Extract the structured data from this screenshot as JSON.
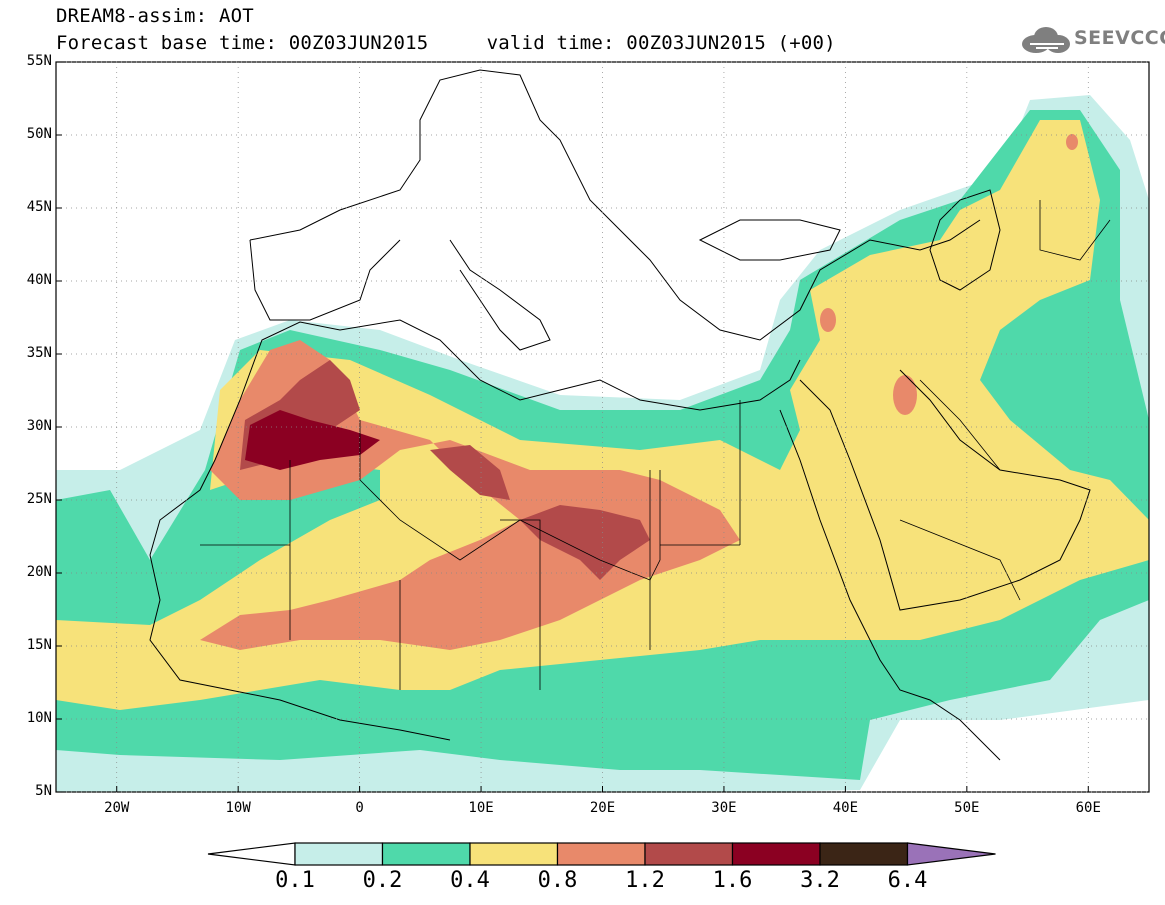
{
  "header": {
    "line1": "DREAM8-assim: AOT",
    "line2": "Forecast base time: 00Z03JUN2015     valid time: 00Z03JUN2015 (+00)"
  },
  "logo": {
    "text": "SEEVCCC",
    "icon": "cloud-icon"
  },
  "map": {
    "lon_range": [
      -25,
      65
    ],
    "lat_range": [
      5,
      55
    ],
    "y_ticks": [
      "55N",
      "50N",
      "45N",
      "40N",
      "35N",
      "30N",
      "25N",
      "20N",
      "15N",
      "10N",
      "5N"
    ],
    "x_ticks": [
      "20W",
      "10W",
      "0",
      "10E",
      "20E",
      "30E",
      "40E",
      "50E",
      "60E"
    ]
  },
  "colorbar": {
    "labels": [
      "0.1",
      "0.2",
      "0.4",
      "0.8",
      "1.2",
      "1.6",
      "3.2",
      "6.4"
    ],
    "colors": [
      "#ffffff",
      "#c6eee9",
      "#4fd9aa",
      "#f7e27a",
      "#e8896a",
      "#b24a4a",
      "#8b0022",
      "#3b2516",
      "#9a72b8"
    ]
  }
}
